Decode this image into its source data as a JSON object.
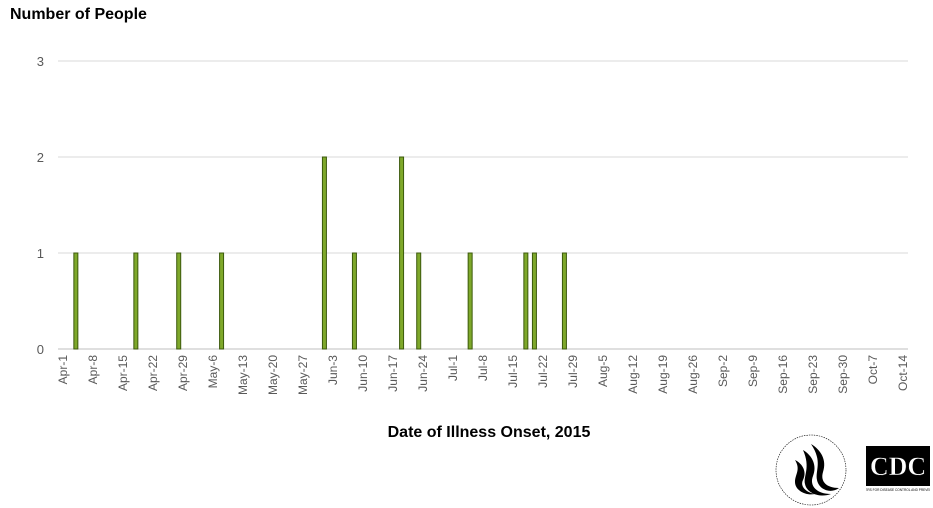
{
  "chart_data": {
    "type": "bar",
    "title": "",
    "ylabel": "Number of People",
    "xlabel": "Date of Illness Onset, 2015",
    "ylim": [
      0,
      3
    ],
    "yticks": [
      0,
      1,
      2,
      3
    ],
    "grid": "horizontal",
    "bar_color": "#7ea82a",
    "bar_edge_color": "#3c5a0c",
    "x_ticks": [
      "Apr-1",
      "Apr-8",
      "Apr-15",
      "Apr-22",
      "Apr-29",
      "May-6",
      "May-13",
      "May-20",
      "May-27",
      "Jun-3",
      "Jun-10",
      "Jun-17",
      "Jun-24",
      "Jul-1",
      "Jul-8",
      "Jul-15",
      "Jul-22",
      "Jul-29",
      "Aug-5",
      "Aug-12",
      "Aug-19",
      "Aug-26",
      "Sep-2",
      "Sep-9",
      "Sep-16",
      "Sep-23",
      "Sep-30",
      "Oct-7",
      "Oct-14"
    ],
    "points": [
      {
        "date": "Apr-4",
        "value": 1
      },
      {
        "date": "Apr-18",
        "value": 1
      },
      {
        "date": "Apr-28",
        "value": 1
      },
      {
        "date": "May-8",
        "value": 1
      },
      {
        "date": "Jun-1",
        "value": 2
      },
      {
        "date": "Jun-8",
        "value": 1
      },
      {
        "date": "Jun-19",
        "value": 2
      },
      {
        "date": "Jun-23",
        "value": 1
      },
      {
        "date": "Jul-5",
        "value": 1
      },
      {
        "date": "Jul-18",
        "value": 1
      },
      {
        "date": "Jul-20",
        "value": 1
      },
      {
        "date": "Jul-27",
        "value": 1
      }
    ]
  },
  "logos": {
    "hhs_text": "DEPARTMENT OF HEALTH & HUMAN SERVICES USA",
    "cdc_text": "CDC",
    "cdc_subtext": "CENTERS FOR DISEASE CONTROL AND PREVENTION"
  }
}
